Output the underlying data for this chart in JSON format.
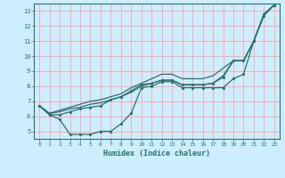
{
  "xlabel": "Humidex (Indice chaleur)",
  "bg_color": "#cceeff",
  "grid_color": "#ffaaaa",
  "line_color": "#2a7070",
  "xlim": [
    -0.5,
    23.5
  ],
  "ylim": [
    4.5,
    13.5
  ],
  "xticks": [
    0,
    1,
    2,
    3,
    4,
    5,
    6,
    7,
    8,
    9,
    10,
    11,
    12,
    13,
    14,
    15,
    16,
    17,
    18,
    19,
    20,
    21,
    22,
    23
  ],
  "yticks": [
    5,
    6,
    7,
    8,
    9,
    10,
    11,
    12,
    13
  ],
  "line1_dots": {
    "x": [
      0,
      1,
      2,
      3,
      4,
      5,
      6,
      7,
      8,
      9,
      10,
      11,
      12,
      13,
      14,
      15,
      16,
      17,
      18,
      19,
      20,
      21,
      22,
      23
    ],
    "y": [
      6.7,
      6.1,
      5.8,
      4.8,
      4.8,
      4.8,
      5.0,
      5.0,
      5.5,
      6.2,
      7.9,
      8.0,
      8.3,
      8.3,
      7.9,
      7.9,
      7.9,
      7.9,
      7.9,
      8.5,
      8.8,
      11.0,
      12.7,
      13.4
    ]
  },
  "line2_smooth": {
    "x": [
      0,
      1,
      2,
      3,
      4,
      5,
      6,
      7,
      8,
      9,
      10,
      11,
      12,
      13,
      14,
      15,
      16,
      17,
      18,
      19,
      20,
      21,
      22,
      23
    ],
    "y": [
      6.7,
      6.2,
      6.3,
      6.5,
      6.6,
      6.8,
      6.9,
      7.1,
      7.3,
      7.6,
      8.0,
      8.2,
      8.4,
      8.4,
      8.1,
      8.1,
      8.1,
      8.2,
      8.7,
      9.7,
      9.7,
      11.0,
      12.8,
      13.4
    ]
  },
  "line3_dots": {
    "x": [
      0,
      1,
      2,
      3,
      4,
      5,
      6,
      7,
      8,
      9,
      10,
      11,
      12,
      13,
      14,
      15,
      16,
      17,
      18,
      19,
      20,
      21,
      22,
      23
    ],
    "y": [
      6.7,
      6.1,
      6.1,
      6.3,
      6.5,
      6.6,
      6.7,
      7.1,
      7.3,
      7.7,
      8.1,
      8.2,
      8.4,
      8.4,
      8.1,
      8.1,
      8.1,
      8.2,
      8.6,
      9.7,
      9.7,
      11.0,
      12.8,
      13.4
    ]
  },
  "line4_upper": {
    "x": [
      0,
      1,
      2,
      3,
      4,
      5,
      6,
      7,
      8,
      9,
      10,
      11,
      12,
      13,
      14,
      15,
      16,
      17,
      18,
      19,
      20,
      21,
      22,
      23
    ],
    "y": [
      6.7,
      6.2,
      6.4,
      6.6,
      6.8,
      7.0,
      7.1,
      7.3,
      7.5,
      7.9,
      8.2,
      8.5,
      8.8,
      8.8,
      8.5,
      8.5,
      8.5,
      8.7,
      9.2,
      9.7,
      9.7,
      11.0,
      12.8,
      13.4
    ]
  }
}
